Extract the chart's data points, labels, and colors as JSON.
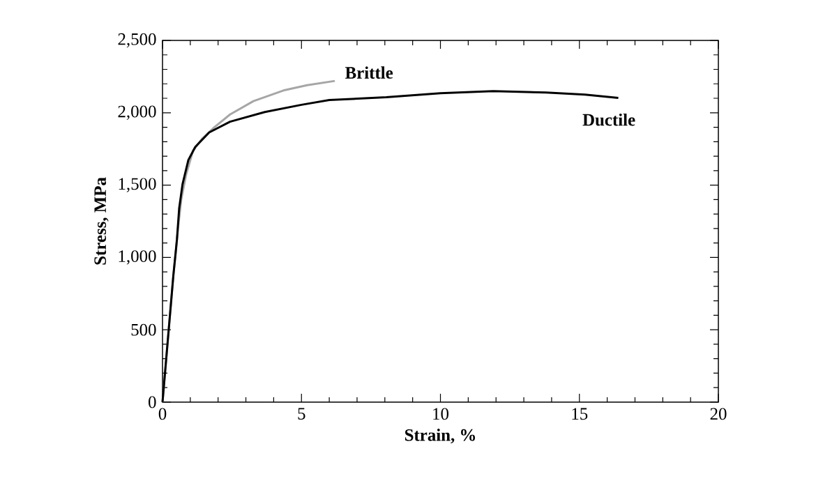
{
  "chart_data": {
    "type": "line",
    "xlabel": "Strain, %",
    "ylabel": "Stress, MPa",
    "xlim": [
      0,
      20
    ],
    "ylim": [
      0,
      2500
    ],
    "xticks": [
      0,
      5,
      10,
      15,
      20
    ],
    "yticks": [
      0,
      500,
      {
        "value": 1000,
        "label": "1,000"
      },
      {
        "value": 1500,
        "label": "1,500"
      },
      {
        "value": 2000,
        "label": "2,000"
      },
      {
        "value": 2500,
        "label": "2,500"
      }
    ],
    "grid": false,
    "legend": false,
    "marker": "none",
    "line_style": "solid",
    "series": [
      {
        "name": "Brittle",
        "color": "#a6a6a6",
        "x": [
          0,
          0.39,
          0.48,
          0.56,
          0.68,
          0.85,
          1.1,
          1.43,
          1.85,
          2.43,
          3.27,
          4.35,
          5.2,
          6.2
        ],
        "values": [
          0,
          875,
          1041,
          1207,
          1407,
          1573,
          1739,
          1822,
          1897,
          1988,
          2080,
          2154,
          2190,
          2220
        ]
      },
      {
        "name": "Ductile",
        "color": "#000000",
        "x": [
          0,
          0.39,
          0.52,
          0.6,
          0.72,
          0.93,
          1.18,
          1.68,
          2.43,
          3.68,
          5.0,
          6.0,
          8.05,
          10.0,
          11.9,
          13.8,
          15.2,
          16.4
        ],
        "values": [
          0,
          875,
          1125,
          1340,
          1506,
          1673,
          1764,
          1864,
          1938,
          2005,
          2055,
          2088,
          2107,
          2135,
          2149,
          2140,
          2125,
          2103
        ]
      }
    ]
  }
}
